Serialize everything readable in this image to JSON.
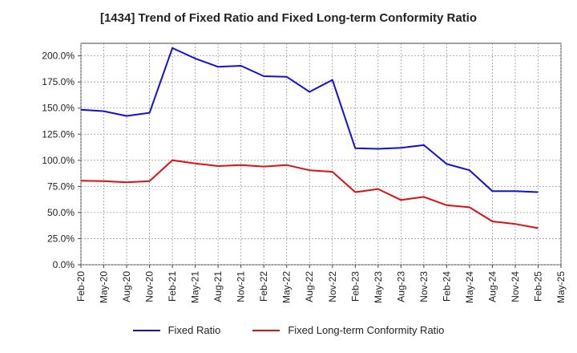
{
  "chart_data": {
    "type": "line",
    "title": "[1434]  Trend of Fixed Ratio and Fixed Long-term Conformity Ratio",
    "xlabel": "",
    "ylabel": "",
    "x": [
      "Feb-20",
      "May-20",
      "Aug-20",
      "Nov-20",
      "Feb-21",
      "May-21",
      "Aug-21",
      "Nov-21",
      "Feb-22",
      "May-22",
      "Aug-22",
      "Nov-22",
      "Feb-23",
      "May-23",
      "Aug-23",
      "Nov-23",
      "Feb-24",
      "May-24",
      "Aug-24",
      "Nov-24",
      "Feb-25",
      "May-25"
    ],
    "y_ticks": [
      "0.0%",
      "25.0%",
      "50.0%",
      "75.0%",
      "100.0%",
      "125.0%",
      "150.0%",
      "175.0%",
      "200.0%"
    ],
    "ylim": [
      0,
      212
    ],
    "grid": true,
    "legend_position": "bottom",
    "series": [
      {
        "name": "Fixed Ratio",
        "color": "#1010d8",
        "values": [
          148.5,
          147.0,
          142.5,
          145.5,
          207.5,
          197.5,
          189.5,
          190.5,
          180.5,
          180.0,
          165.5,
          177.0,
          111.5,
          111.0,
          112.0,
          114.5,
          96.5,
          90.5,
          70.5,
          70.5,
          69.5,
          null
        ]
      },
      {
        "name": "Fixed Long-term Conformity Ratio",
        "color": "#e01010",
        "values": [
          80.5,
          80.0,
          79.0,
          80.0,
          100.0,
          97.0,
          94.5,
          95.5,
          94.0,
          95.5,
          90.5,
          89.0,
          69.5,
          72.5,
          62.0,
          65.0,
          57.0,
          55.0,
          41.5,
          39.0,
          35.0,
          null
        ]
      }
    ]
  }
}
